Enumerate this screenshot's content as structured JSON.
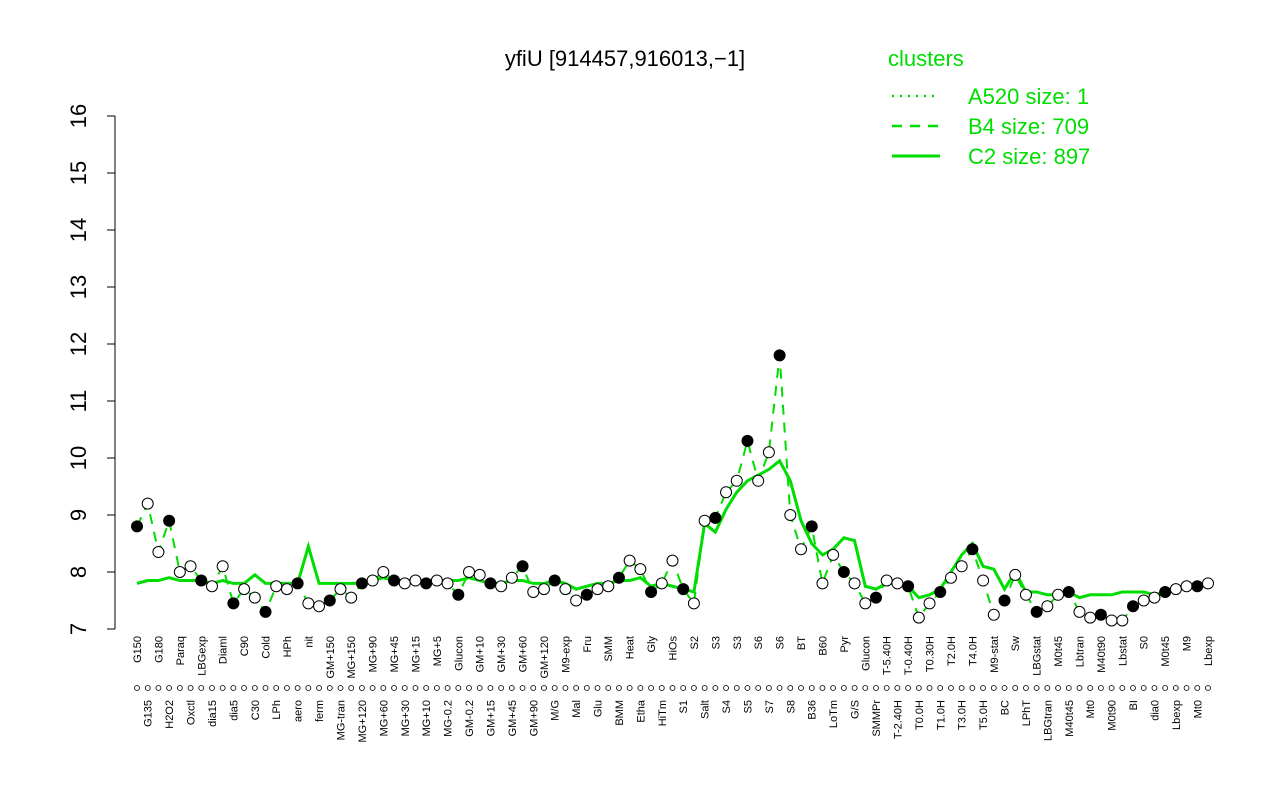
{
  "chart_data": {
    "type": "line",
    "title": "yfiU [914457,916013,−1]",
    "legend_title": "clusters",
    "legend_position": "top-right",
    "categories": [
      "G150",
      "G135",
      "G180",
      "H2O2",
      "Paraq",
      "Oxctl",
      "LBGexp",
      "dia15",
      "Diaml",
      "dia5",
      "C90",
      "C30",
      "Cold",
      "LPh",
      "HPh",
      "aero",
      "nit",
      "ferm",
      "GM+150",
      "MG-tran",
      "MG+150",
      "MG+120",
      "MG+90",
      "MG+60",
      "MG+45",
      "MG+30",
      "MG+15",
      "MG+10",
      "MG+5",
      "MG-0.2",
      "Glucon",
      "GM-0.2",
      "GM+10",
      "GM+15",
      "GM+30",
      "GM+45",
      "GM+60",
      "GM+90",
      "GM+120",
      "M/G",
      "M9-exp",
      "Mal",
      "Fru",
      "Glu",
      "SMM",
      "BMM",
      "Heat",
      "Etha",
      "Gly",
      "HiTm",
      "HiOs",
      "S1",
      "S2",
      "Salt",
      "S3",
      "S4",
      "S3",
      "S5",
      "S6",
      "S7",
      "S6",
      "S8",
      "BT",
      "B36",
      "B60",
      "LoTm",
      "Pyr",
      "G/S",
      "Glucon",
      "SMMPr",
      "T-5.40H",
      "T-2.40H",
      "T-0.40H",
      "T0.0H",
      "T0.30H",
      "T1.0H",
      "T2.0H",
      "T3.0H",
      "T4.0H",
      "T5.0H",
      "M9-stat",
      "BC",
      "Sw",
      "LPhT",
      "LBGstat",
      "LBGtran",
      "M0t45",
      "M40t45",
      "Lbtran",
      "Mt0",
      "M40t90",
      "M0t90",
      "Lbstat",
      "BI",
      "S0",
      "dia0",
      "M0t45",
      "Lbexp",
      "M9",
      "Mt0",
      "Lbexp"
    ],
    "series": [
      {
        "name": "A520 size: 1",
        "color": "#00dd00",
        "style": "dotted",
        "markers": false,
        "values": [
          null,
          null,
          null,
          null,
          null,
          null,
          null,
          null,
          null,
          null,
          null,
          null,
          null,
          null,
          null,
          null,
          null,
          null,
          null,
          null,
          null,
          null,
          null,
          null,
          null,
          null,
          null,
          null,
          null,
          null,
          null,
          null,
          null,
          null,
          null,
          null,
          null,
          null,
          null,
          null,
          null,
          null,
          null,
          null,
          null,
          null,
          null,
          null,
          null,
          null,
          null,
          null,
          null,
          null,
          null,
          null,
          null,
          null,
          null,
          null,
          null,
          null,
          null,
          null,
          null,
          null,
          null,
          null,
          null,
          null,
          null,
          null,
          null,
          null,
          null,
          null,
          null,
          null,
          null,
          null,
          null,
          null,
          null,
          null,
          null,
          null,
          null,
          null,
          null,
          null,
          null,
          null,
          null,
          null,
          null,
          null,
          null,
          null,
          null,
          null,
          null
        ]
      },
      {
        "name": "B4 size: 709",
        "color": "#00dd00",
        "style": "dashed",
        "markers": true,
        "values": [
          8.8,
          9.2,
          8.35,
          8.9,
          8.0,
          8.1,
          7.85,
          7.75,
          8.1,
          7.45,
          7.7,
          7.55,
          7.3,
          7.75,
          7.7,
          7.8,
          7.45,
          7.4,
          7.5,
          7.7,
          7.55,
          7.8,
          7.85,
          8.0,
          7.85,
          7.8,
          7.85,
          7.8,
          7.85,
          7.8,
          7.6,
          8.0,
          7.95,
          7.8,
          7.75,
          7.9,
          8.1,
          7.65,
          7.7,
          7.85,
          7.7,
          7.5,
          7.6,
          7.7,
          7.75,
          7.9,
          8.2,
          8.05,
          7.65,
          7.8,
          8.2,
          7.7,
          7.45,
          8.9,
          8.95,
          9.4,
          9.6,
          10.3,
          9.6,
          10.1,
          11.8,
          9.0,
          8.4,
          8.8,
          7.8,
          8.3,
          8.0,
          7.8,
          7.45,
          7.55,
          7.85,
          7.8,
          7.75,
          7.2,
          7.45,
          7.65,
          7.9,
          8.1,
          8.4,
          7.85,
          7.25,
          7.5,
          7.95,
          7.6,
          7.3,
          7.4,
          7.6,
          7.65,
          7.3,
          7.2,
          7.25,
          7.15,
          7.15,
          7.4,
          7.5,
          7.55,
          7.65,
          7.7,
          7.75,
          7.75,
          7.8
        ]
      },
      {
        "name": "C2 size: 897",
        "color": "#00dd00",
        "style": "solid",
        "markers": false,
        "values": [
          7.8,
          7.85,
          7.85,
          7.9,
          7.85,
          7.85,
          7.85,
          7.8,
          7.85,
          7.8,
          7.8,
          7.95,
          7.8,
          7.8,
          7.8,
          7.8,
          8.45,
          7.8,
          7.8,
          7.8,
          7.8,
          7.8,
          7.85,
          7.9,
          7.85,
          7.85,
          7.85,
          7.85,
          7.85,
          7.85,
          7.85,
          7.9,
          7.85,
          7.8,
          7.8,
          7.85,
          7.85,
          7.8,
          7.8,
          7.85,
          7.8,
          7.7,
          7.75,
          7.8,
          7.8,
          7.85,
          7.85,
          7.9,
          7.75,
          7.8,
          7.75,
          7.7,
          7.65,
          8.85,
          8.7,
          9.1,
          9.4,
          9.6,
          9.7,
          9.8,
          9.95,
          9.6,
          8.9,
          8.5,
          8.3,
          8.4,
          8.6,
          8.55,
          7.75,
          7.7,
          7.8,
          7.8,
          7.75,
          7.55,
          7.6,
          7.7,
          8.0,
          8.3,
          8.5,
          8.1,
          8.05,
          7.7,
          8.0,
          7.65,
          7.65,
          7.6,
          7.6,
          7.65,
          7.55,
          7.6,
          7.6,
          7.6,
          7.65,
          7.65,
          7.65,
          7.6,
          7.65,
          7.7,
          7.75,
          7.75,
          7.8
        ]
      }
    ],
    "ylim": [
      7,
      16
    ],
    "yticks": [
      7,
      8,
      9,
      10,
      11,
      12,
      13,
      14,
      15,
      16
    ],
    "grid": false
  }
}
